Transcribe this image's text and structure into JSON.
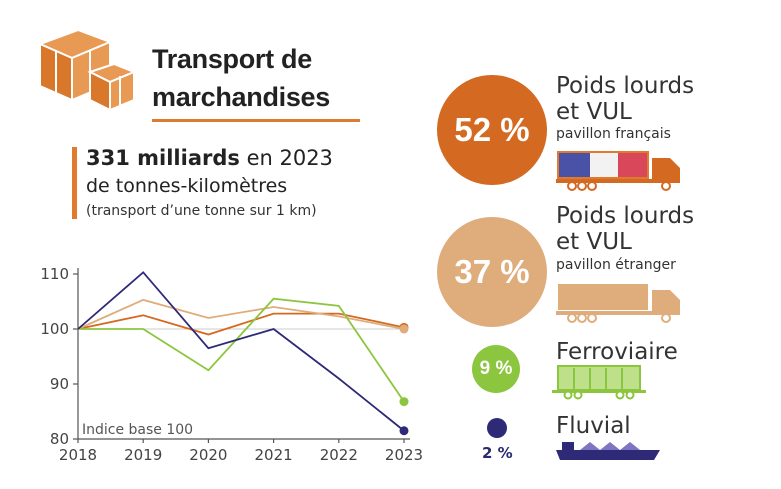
{
  "title": {
    "line1": "Transport de",
    "line2": "marchandises"
  },
  "headline": {
    "value": "331 milliards",
    "suffix": " en 2023",
    "unit": "de tonnes-kilomètres",
    "note": "(transport d’une tonne sur 1 km)"
  },
  "chart_data": {
    "type": "line",
    "x": [
      2018,
      2019,
      2020,
      2021,
      2022,
      2023
    ],
    "ylim": [
      80,
      110
    ],
    "yticks": [
      80,
      90,
      100,
      110
    ],
    "annotation": "Indice base 100",
    "grid": false,
    "series": [
      {
        "name": "Poids lourds et VUL pavillon français",
        "color": "#d46a22",
        "values": [
          100,
          102.5,
          99,
          102.8,
          102.8,
          100.3
        ]
      },
      {
        "name": "Poids lourds et VUL pavillon étranger",
        "color": "#dfac7b",
        "values": [
          100,
          105.3,
          102,
          104,
          102.3,
          100
        ]
      },
      {
        "name": "Ferroviaire",
        "color": "#8cc63f",
        "values": [
          100,
          100,
          92.5,
          105.5,
          104.2,
          86.8
        ]
      },
      {
        "name": "Fluvial",
        "color": "#2e2a78",
        "values": [
          100,
          110.3,
          96.5,
          100,
          91,
          81.5
        ]
      }
    ]
  },
  "modes": [
    {
      "percent": "52 %",
      "title1": "Poids lourds",
      "title2": "et VUL",
      "subtitle": "pavillon français",
      "color": "#d46a22"
    },
    {
      "percent": "37 %",
      "title1": "Poids lourds",
      "title2": "et VUL",
      "subtitle": "pavillon étranger",
      "color": "#dfac7b"
    },
    {
      "percent": "9 %",
      "title1": "Ferroviaire",
      "color": "#8cc63f"
    },
    {
      "percent": "2 %",
      "title1": "Fluvial",
      "color": "#2e2a78"
    }
  ],
  "icons": {
    "boxes": "cardboard-boxes-icon",
    "truck_fr": "truck-french-flag-icon",
    "truck_foreign": "truck-icon",
    "wagon": "freight-wagon-icon",
    "barge": "barge-icon"
  }
}
